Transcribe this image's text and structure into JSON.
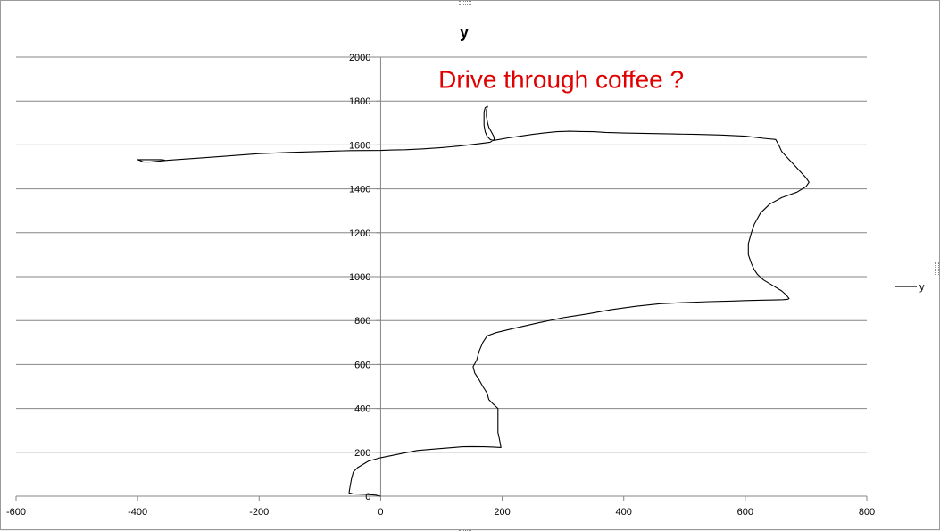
{
  "chart_data": {
    "type": "scatter",
    "title": "y",
    "xlim": [
      -600,
      800
    ],
    "ylim": [
      0,
      2000
    ],
    "x_ticks": [
      -600,
      -400,
      -200,
      0,
      200,
      400,
      600,
      800
    ],
    "y_ticks": [
      0,
      200,
      400,
      600,
      800,
      1000,
      1200,
      1400,
      1600,
      1800,
      2000
    ],
    "grid": "horizontal major gridlines",
    "legend_position": "right",
    "annotation": {
      "text": "Drive through coffee ?",
      "color": "#e00000",
      "anchor": {
        "x": 95,
        "y": 1860
      }
    },
    "series": [
      {
        "name": "y",
        "color": "#000000",
        "mode": "lines",
        "points": [
          [
            0,
            0
          ],
          [
            -8,
            5
          ],
          [
            -25,
            8
          ],
          [
            -45,
            10
          ],
          [
            -52,
            15
          ],
          [
            -50,
            50
          ],
          [
            -48,
            80
          ],
          [
            -45,
            110
          ],
          [
            -38,
            130
          ],
          [
            -20,
            160
          ],
          [
            0,
            175
          ],
          [
            30,
            192
          ],
          [
            60,
            208
          ],
          [
            90,
            215
          ],
          [
            120,
            222
          ],
          [
            135,
            225
          ],
          [
            150,
            226
          ],
          [
            170,
            225
          ],
          [
            185,
            224
          ],
          [
            198,
            222
          ],
          [
            195,
            265
          ],
          [
            193,
            290
          ],
          [
            193,
            320
          ],
          [
            193,
            360
          ],
          [
            193,
            400
          ],
          [
            185,
            420
          ],
          [
            178,
            440
          ],
          [
            175,
            470
          ],
          [
            168,
            500
          ],
          [
            162,
            530
          ],
          [
            155,
            560
          ],
          [
            152,
            590
          ],
          [
            158,
            620
          ],
          [
            162,
            660
          ],
          [
            168,
            700
          ],
          [
            175,
            730
          ],
          [
            190,
            745
          ],
          [
            220,
            765
          ],
          [
            260,
            790
          ],
          [
            300,
            813
          ],
          [
            340,
            830
          ],
          [
            380,
            850
          ],
          [
            420,
            865
          ],
          [
            460,
            877
          ],
          [
            500,
            882
          ],
          [
            540,
            886
          ],
          [
            580,
            889
          ],
          [
            600,
            891
          ],
          [
            630,
            893
          ],
          [
            650,
            894
          ],
          [
            662,
            895
          ],
          [
            670,
            897
          ],
          [
            672,
            900
          ],
          [
            668,
            915
          ],
          [
            660,
            935
          ],
          [
            645,
            960
          ],
          [
            630,
            985
          ],
          [
            620,
            1010
          ],
          [
            615,
            1030
          ],
          [
            610,
            1060
          ],
          [
            605,
            1100
          ],
          [
            605,
            1150
          ],
          [
            610,
            1200
          ],
          [
            615,
            1240
          ],
          [
            625,
            1290
          ],
          [
            640,
            1330
          ],
          [
            660,
            1360
          ],
          [
            685,
            1385
          ],
          [
            700,
            1410
          ],
          [
            705,
            1430
          ],
          [
            700,
            1450
          ],
          [
            690,
            1480
          ],
          [
            680,
            1510
          ],
          [
            670,
            1540
          ],
          [
            660,
            1570
          ],
          [
            655,
            1600
          ],
          [
            650,
            1625
          ],
          [
            630,
            1630
          ],
          [
            600,
            1640
          ],
          [
            560,
            1645
          ],
          [
            520,
            1648
          ],
          [
            480,
            1650
          ],
          [
            440,
            1652
          ],
          [
            400,
            1654
          ],
          [
            370,
            1657
          ],
          [
            350,
            1660
          ],
          [
            330,
            1661
          ],
          [
            310,
            1662
          ],
          [
            290,
            1660
          ],
          [
            270,
            1655
          ],
          [
            250,
            1648
          ],
          [
            230,
            1640
          ],
          [
            210,
            1632
          ],
          [
            195,
            1625
          ],
          [
            185,
            1620
          ],
          [
            180,
            1625
          ],
          [
            175,
            1640
          ],
          [
            172,
            1660
          ],
          [
            170,
            1690
          ],
          [
            170,
            1720
          ],
          [
            170,
            1750
          ],
          [
            172,
            1770
          ],
          [
            176,
            1776
          ],
          [
            174,
            1760
          ],
          [
            174,
            1730
          ],
          [
            176,
            1700
          ],
          [
            178,
            1680
          ],
          [
            182,
            1660
          ],
          [
            186,
            1640
          ],
          [
            187,
            1625
          ],
          [
            180,
            1612
          ],
          [
            160,
            1605
          ],
          [
            130,
            1595
          ],
          [
            100,
            1588
          ],
          [
            70,
            1582
          ],
          [
            40,
            1578
          ],
          [
            20,
            1577
          ],
          [
            0,
            1575
          ],
          [
            -50,
            1574
          ],
          [
            -100,
            1570
          ],
          [
            -150,
            1566
          ],
          [
            -200,
            1560
          ],
          [
            -250,
            1550
          ],
          [
            -300,
            1540
          ],
          [
            -350,
            1530
          ],
          [
            -380,
            1522
          ],
          [
            -390,
            1522
          ],
          [
            -395,
            1528
          ],
          [
            -400,
            1533
          ],
          [
            -380,
            1533
          ],
          [
            -360,
            1533
          ],
          [
            -355,
            1530
          ]
        ]
      }
    ]
  }
}
